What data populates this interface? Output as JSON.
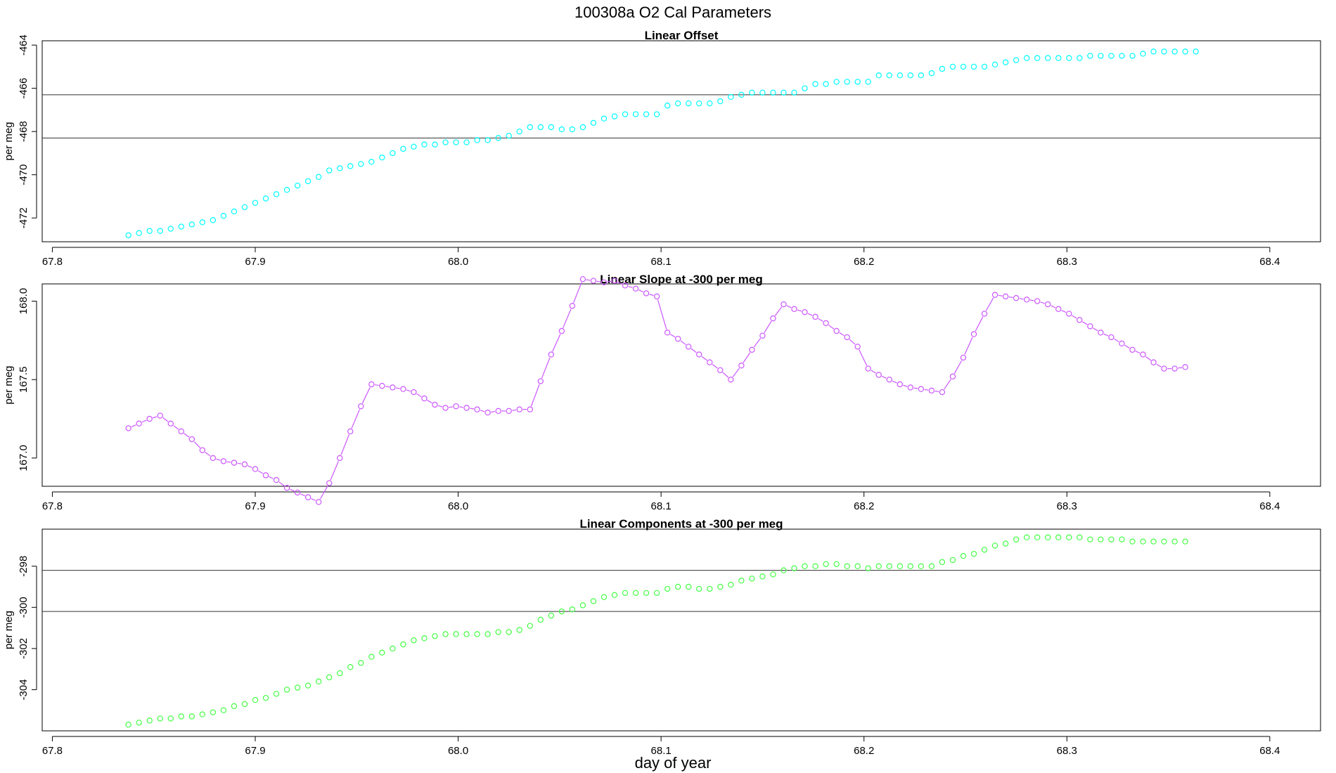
{
  "figure": {
    "title": "100308a   O2 Cal Parameters",
    "xlabel": "day of year"
  },
  "chart_data": [
    {
      "type": "scatter",
      "title": "Linear Offset",
      "ylabel": "per meg",
      "xlim": [
        67.795,
        68.425
      ],
      "ylim": [
        -473.1,
        -463.8
      ],
      "xticks": [
        67.8,
        67.9,
        68.0,
        68.1,
        68.2,
        68.3,
        68.4
      ],
      "xtick_labels": [
        "67.8",
        "67.9",
        "68.0",
        "68.1",
        "68.2",
        "68.3",
        "68.4"
      ],
      "yticks": [
        -472,
        -470,
        -468,
        -466,
        -464
      ],
      "ytick_labels": [
        "-472",
        "-470",
        "-468",
        "-466",
        "-464"
      ],
      "hlines": [
        -466.3,
        -468.3
      ],
      "color": "#00ffff",
      "connect": false,
      "grid": false,
      "x_start": 67.8375,
      "x_step": 0.0052083,
      "y": [
        -472.8,
        -472.7,
        -472.6,
        -472.6,
        -472.5,
        -472.4,
        -472.3,
        -472.2,
        -472.1,
        -471.9,
        -471.7,
        -471.5,
        -471.3,
        -471.1,
        -470.9,
        -470.7,
        -470.5,
        -470.3,
        -470.1,
        -469.8,
        -469.7,
        -469.6,
        -469.5,
        -469.4,
        -469.2,
        -469.0,
        -468.8,
        -468.7,
        -468.6,
        -468.6,
        -468.5,
        -468.5,
        -468.5,
        -468.4,
        -468.4,
        -468.3,
        -468.2,
        -468.0,
        -467.8,
        -467.8,
        -467.8,
        -467.9,
        -467.9,
        -467.8,
        -467.6,
        -467.4,
        -467.3,
        -467.2,
        -467.2,
        -467.2,
        -467.2,
        -466.8,
        -466.7,
        -466.7,
        -466.7,
        -466.7,
        -466.6,
        -466.4,
        -466.3,
        -466.2,
        -466.2,
        -466.2,
        -466.2,
        -466.2,
        -466.0,
        -465.8,
        -465.8,
        -465.7,
        -465.7,
        -465.7,
        -465.7,
        -465.4,
        -465.4,
        -465.4,
        -465.4,
        -465.4,
        -465.3,
        -465.1,
        -465.0,
        -465.0,
        -465.0,
        -465.0,
        -464.9,
        -464.8,
        -464.7,
        -464.6,
        -464.6,
        -464.6,
        -464.6,
        -464.6,
        -464.6,
        -464.5,
        -464.5,
        -464.5,
        -464.5,
        -464.5,
        -464.4,
        -464.3,
        -464.3,
        -464.3,
        -464.3,
        -464.3
      ]
    },
    {
      "type": "line",
      "title": "Linear Slope at -300 per meg",
      "ylabel": "per meg",
      "xlim": [
        67.795,
        68.425
      ],
      "ylim": [
        166.82,
        168.11
      ],
      "xticks": [
        67.8,
        67.9,
        68.0,
        68.1,
        68.2,
        68.3,
        68.4
      ],
      "xtick_labels": [
        "67.8",
        "67.9",
        "68.0",
        "68.1",
        "68.2",
        "68.3",
        "68.4"
      ],
      "yticks": [
        167.0,
        167.5,
        168.0
      ],
      "ytick_labels": [
        "167.0",
        "167.5",
        "168.0"
      ],
      "hlines": [],
      "color": "#cc55ff",
      "connect": true,
      "grid": false,
      "x_start": 67.8375,
      "x_step": 0.0052083,
      "y": [
        167.19,
        167.22,
        167.25,
        167.27,
        167.22,
        167.17,
        167.12,
        167.05,
        167.0,
        166.98,
        166.97,
        166.96,
        166.93,
        166.89,
        166.86,
        166.81,
        166.78,
        166.75,
        166.72,
        166.84,
        167.0,
        167.17,
        167.33,
        167.47,
        167.46,
        167.45,
        167.44,
        167.42,
        167.38,
        167.34,
        167.32,
        167.33,
        167.32,
        167.31,
        167.29,
        167.3,
        167.3,
        167.31,
        167.31,
        167.49,
        167.66,
        167.81,
        167.97,
        168.14,
        168.13,
        168.12,
        168.13,
        168.1,
        168.08,
        168.05,
        168.03,
        167.8,
        167.76,
        167.71,
        167.66,
        167.61,
        167.56,
        167.5,
        167.59,
        167.69,
        167.78,
        167.89,
        167.98,
        167.95,
        167.93,
        167.9,
        167.86,
        167.81,
        167.77,
        167.71,
        167.57,
        167.53,
        167.5,
        167.47,
        167.45,
        167.44,
        167.43,
        167.42,
        167.52,
        167.64,
        167.79,
        167.92,
        168.04,
        168.03,
        168.02,
        168.01,
        168.0,
        167.98,
        167.95,
        167.92,
        167.88,
        167.84,
        167.8,
        167.77,
        167.73,
        167.69,
        167.66,
        167.61,
        167.57,
        167.57,
        167.58
      ]
    },
    {
      "type": "scatter",
      "title": "Linear Components at -300 per meg",
      "ylabel": "per meg",
      "xlim": [
        67.795,
        68.425
      ],
      "ylim": [
        -306.0,
        -296.2
      ],
      "xticks": [
        67.8,
        67.9,
        68.0,
        68.1,
        68.2,
        68.3,
        68.4
      ],
      "xtick_labels": [
        "67.8",
        "67.9",
        "68.0",
        "68.1",
        "68.2",
        "68.3",
        "68.4"
      ],
      "yticks": [
        -304,
        -302,
        -300,
        -298
      ],
      "ytick_labels": [
        "-304",
        "-302",
        "-300",
        "-298"
      ],
      "hlines": [
        -298.2,
        -300.2
      ],
      "color": "#44ff44",
      "connect": false,
      "grid": false,
      "x_start": 67.8375,
      "x_step": 0.0052083,
      "y": [
        -305.7,
        -305.6,
        -305.5,
        -305.4,
        -305.4,
        -305.3,
        -305.3,
        -305.2,
        -305.1,
        -305.0,
        -304.8,
        -304.7,
        -304.5,
        -304.4,
        -304.2,
        -304.0,
        -303.9,
        -303.8,
        -303.6,
        -303.4,
        -303.2,
        -302.9,
        -302.7,
        -302.4,
        -302.2,
        -302.0,
        -301.8,
        -301.6,
        -301.5,
        -301.4,
        -301.3,
        -301.3,
        -301.3,
        -301.3,
        -301.3,
        -301.2,
        -301.2,
        -301.1,
        -300.9,
        -300.6,
        -300.4,
        -300.2,
        -300.1,
        -299.9,
        -299.7,
        -299.5,
        -299.4,
        -299.3,
        -299.3,
        -299.3,
        -299.3,
        -299.1,
        -299.0,
        -299.0,
        -299.1,
        -299.1,
        -299.0,
        -298.9,
        -298.7,
        -298.6,
        -298.5,
        -298.4,
        -298.2,
        -298.1,
        -298.0,
        -298.0,
        -297.9,
        -297.9,
        -298.0,
        -298.0,
        -298.1,
        -298.0,
        -298.0,
        -298.0,
        -298.0,
        -298.0,
        -298.0,
        -297.8,
        -297.7,
        -297.5,
        -297.4,
        -297.2,
        -297.0,
        -296.9,
        -296.7,
        -296.6,
        -296.6,
        -296.6,
        -296.6,
        -296.6,
        -296.6,
        -296.7,
        -296.7,
        -296.7,
        -296.7,
        -296.8,
        -296.8,
        -296.8,
        -296.8,
        -296.8,
        -296.8
      ]
    }
  ]
}
